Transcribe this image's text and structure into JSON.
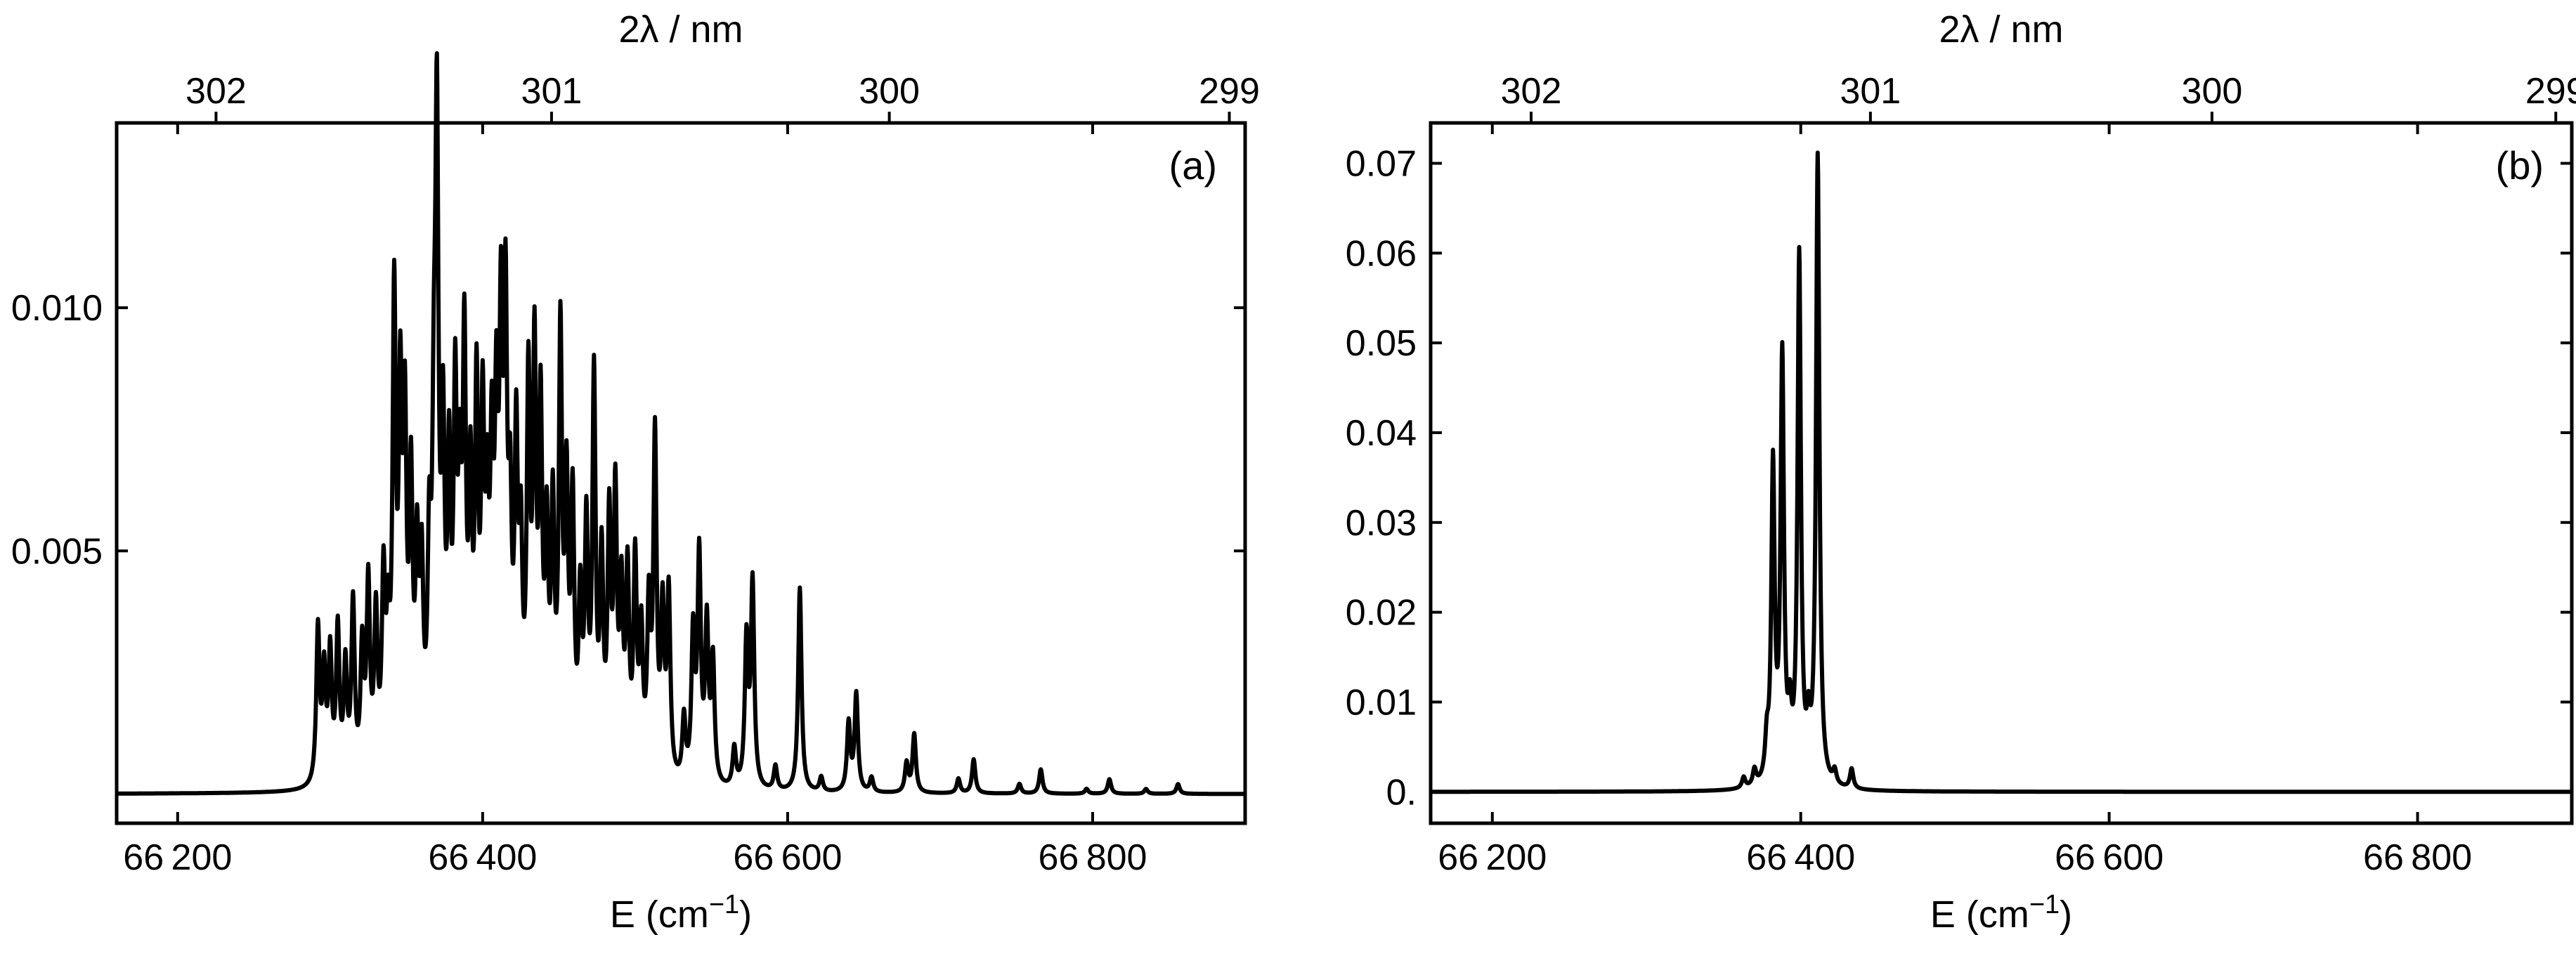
{
  "chart_data": [
    {
      "type": "line",
      "panel_label": "(a)",
      "xlabel_base": "E (cm",
      "xlabel_exp": "−1",
      "xlabel_close": ")",
      "top_xlabel": "2λ / nm",
      "ylabel": "",
      "xlim": [
        66160,
        66900
      ],
      "ylim": [
        -0.0006,
        0.0138
      ],
      "x_ticks": [
        66200,
        66400,
        66600,
        66800
      ],
      "x_tick_labels": [
        "66 200",
        "66 400",
        "66 600",
        "66 800"
      ],
      "y_ticks": [
        0.005,
        0.01
      ],
      "y_tick_labels": [
        "0.005",
        "0.010"
      ],
      "top_ticks": [
        302,
        301,
        300,
        299
      ],
      "top_tick_labels": [
        "302",
        "301",
        "300",
        "299"
      ],
      "line_width_cm": 1.3,
      "baseline": 0.0,
      "peaks": [
        [
          66292,
          0.0032
        ],
        [
          66296,
          0.0022
        ],
        [
          66300,
          0.0026
        ],
        [
          66305,
          0.0031
        ],
        [
          66310,
          0.0023
        ],
        [
          66315,
          0.0036
        ],
        [
          66321,
          0.0026
        ],
        [
          66325,
          0.0039
        ],
        [
          66330,
          0.0032
        ],
        [
          66335,
          0.0038
        ],
        [
          66338,
          0.0024
        ],
        [
          66342,
          0.0094
        ],
        [
          66346,
          0.007
        ],
        [
          66349,
          0.0065
        ],
        [
          66353,
          0.0055
        ],
        [
          66357,
          0.004
        ],
        [
          66360,
          0.0037
        ],
        [
          66365,
          0.004
        ],
        [
          66368,
          0.0052
        ],
        [
          66370,
          0.0122
        ],
        [
          66374,
          0.0062
        ],
        [
          66378,
          0.0056
        ],
        [
          66382,
          0.007
        ],
        [
          66385,
          0.0046
        ],
        [
          66388,
          0.008
        ],
        [
          66392,
          0.0052
        ],
        [
          66396,
          0.0072
        ],
        [
          66400,
          0.0065
        ],
        [
          66403,
          0.0043
        ],
        [
          66406,
          0.0055
        ],
        [
          66409,
          0.0062
        ],
        [
          66412,
          0.0079
        ],
        [
          66415,
          0.0084
        ],
        [
          66418,
          0.0044
        ],
        [
          66422,
          0.0062
        ],
        [
          66425,
          0.004
        ],
        [
          66430,
          0.0075
        ],
        [
          66434,
          0.008
        ],
        [
          66438,
          0.0069
        ],
        [
          66442,
          0.0044
        ],
        [
          66446,
          0.005
        ],
        [
          66451,
          0.0087
        ],
        [
          66455,
          0.0054
        ],
        [
          66459,
          0.0053
        ],
        [
          66464,
          0.0033
        ],
        [
          66468,
          0.0048
        ],
        [
          66473,
          0.008
        ],
        [
          66478,
          0.0042
        ],
        [
          66483,
          0.005
        ],
        [
          66487,
          0.0055
        ],
        [
          66491,
          0.0035
        ],
        [
          66495,
          0.004
        ],
        [
          66500,
          0.0043
        ],
        [
          66504,
          0.0028
        ],
        [
          66509,
          0.0033
        ],
        [
          66513,
          0.0069
        ],
        [
          66518,
          0.0033
        ],
        [
          66522,
          0.0038
        ],
        [
          66532,
          0.0013
        ],
        [
          66538,
          0.003
        ],
        [
          66542,
          0.0046
        ],
        [
          66547,
          0.0032
        ],
        [
          66551,
          0.0025
        ],
        [
          66565,
          0.0008
        ],
        [
          66573,
          0.003
        ],
        [
          66577,
          0.0042
        ],
        [
          66592,
          0.0005
        ],
        [
          66608,
          0.0042
        ],
        [
          66622,
          0.0003
        ],
        [
          66640,
          0.0014
        ],
        [
          66645,
          0.002
        ],
        [
          66655,
          0.0003
        ],
        [
          66678,
          0.0006
        ],
        [
          66683,
          0.0012
        ],
        [
          66712,
          0.0003
        ],
        [
          66722,
          0.0007
        ],
        [
          66752,
          0.0002
        ],
        [
          66766,
          0.0005
        ],
        [
          66796,
          0.0001
        ],
        [
          66811,
          0.0003
        ],
        [
          66835,
          0.0001
        ],
        [
          66856,
          0.0002
        ]
      ]
    },
    {
      "type": "line",
      "panel_label": "(b)",
      "xlabel_base": "E (cm",
      "xlabel_exp": "−1",
      "xlabel_close": ")",
      "top_xlabel": "2λ / nm",
      "ylabel": "",
      "xlim": [
        66160,
        66900
      ],
      "ylim": [
        -0.0035,
        0.0745
      ],
      "x_ticks": [
        66200,
        66400,
        66600,
        66800
      ],
      "x_tick_labels": [
        "66 200",
        "66 400",
        "66 600",
        "66 800"
      ],
      "y_ticks": [
        0.0,
        0.01,
        0.02,
        0.03,
        0.04,
        0.05,
        0.06,
        0.07
      ],
      "y_tick_labels": [
        "0.",
        "0.01",
        "0.02",
        "0.03",
        "0.04",
        "0.05",
        "0.06",
        "0.07"
      ],
      "top_ticks": [
        302,
        301,
        300,
        299
      ],
      "top_tick_labels": [
        "302",
        "301",
        "300",
        "299"
      ],
      "line_width_cm": 1.3,
      "baseline": 0.0,
      "peaks": [
        [
          66363,
          0.0012
        ],
        [
          66370,
          0.0018
        ],
        [
          66378,
          0.004
        ],
        [
          66382,
          0.035
        ],
        [
          66388,
          0.047
        ],
        [
          66393,
          0.006
        ],
        [
          66399,
          0.0585
        ],
        [
          66405,
          0.005
        ],
        [
          66411,
          0.07
        ],
        [
          66422,
          0.0015
        ],
        [
          66433,
          0.0022
        ]
      ]
    }
  ]
}
